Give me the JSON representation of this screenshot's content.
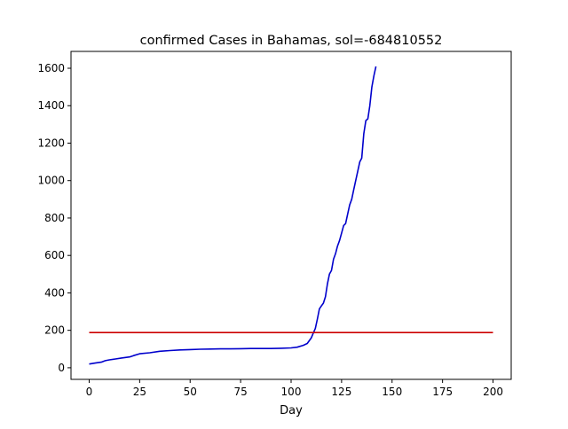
{
  "chart_data": {
    "type": "line",
    "title": "confirmed Cases in Bahamas, sol=-684810552",
    "xlabel": "Day",
    "ylabel": "",
    "xlim": [
      -9,
      209
    ],
    "ylim": [
      -62,
      1690
    ],
    "xticks": [
      0,
      25,
      50,
      75,
      100,
      125,
      150,
      175,
      200
    ],
    "yticks": [
      0,
      200,
      400,
      600,
      800,
      1000,
      1200,
      1400,
      1600
    ],
    "series": [
      {
        "color": "#0000cc",
        "x": [
          0,
          3,
          6,
          8,
          10,
          13,
          16,
          20,
          22,
          25,
          30,
          35,
          40,
          45,
          50,
          55,
          60,
          65,
          70,
          75,
          80,
          85,
          90,
          95,
          100,
          103,
          106,
          108,
          110,
          111,
          112,
          113,
          114,
          115,
          116,
          117,
          118,
          119,
          120,
          121,
          122,
          123,
          124,
          125,
          126,
          127,
          128,
          129,
          130,
          131,
          132,
          133,
          134,
          135,
          136,
          137,
          138,
          139,
          140,
          141,
          142
        ],
        "y": [
          20,
          25,
          30,
          38,
          42,
          47,
          52,
          58,
          65,
          75,
          80,
          88,
          92,
          95,
          97,
          99,
          100,
          101,
          101,
          102,
          103,
          103,
          103,
          104,
          106,
          110,
          120,
          130,
          160,
          185,
          210,
          260,
          315,
          330,
          345,
          380,
          450,
          500,
          520,
          580,
          610,
          650,
          680,
          720,
          760,
          770,
          820,
          870,
          900,
          950,
          1000,
          1050,
          1100,
          1120,
          1250,
          1320,
          1330,
          1400,
          1500,
          1560,
          1610
        ]
      },
      {
        "color": "#cc0000",
        "x": [
          0,
          200
        ],
        "y": [
          188,
          188
        ]
      }
    ]
  }
}
